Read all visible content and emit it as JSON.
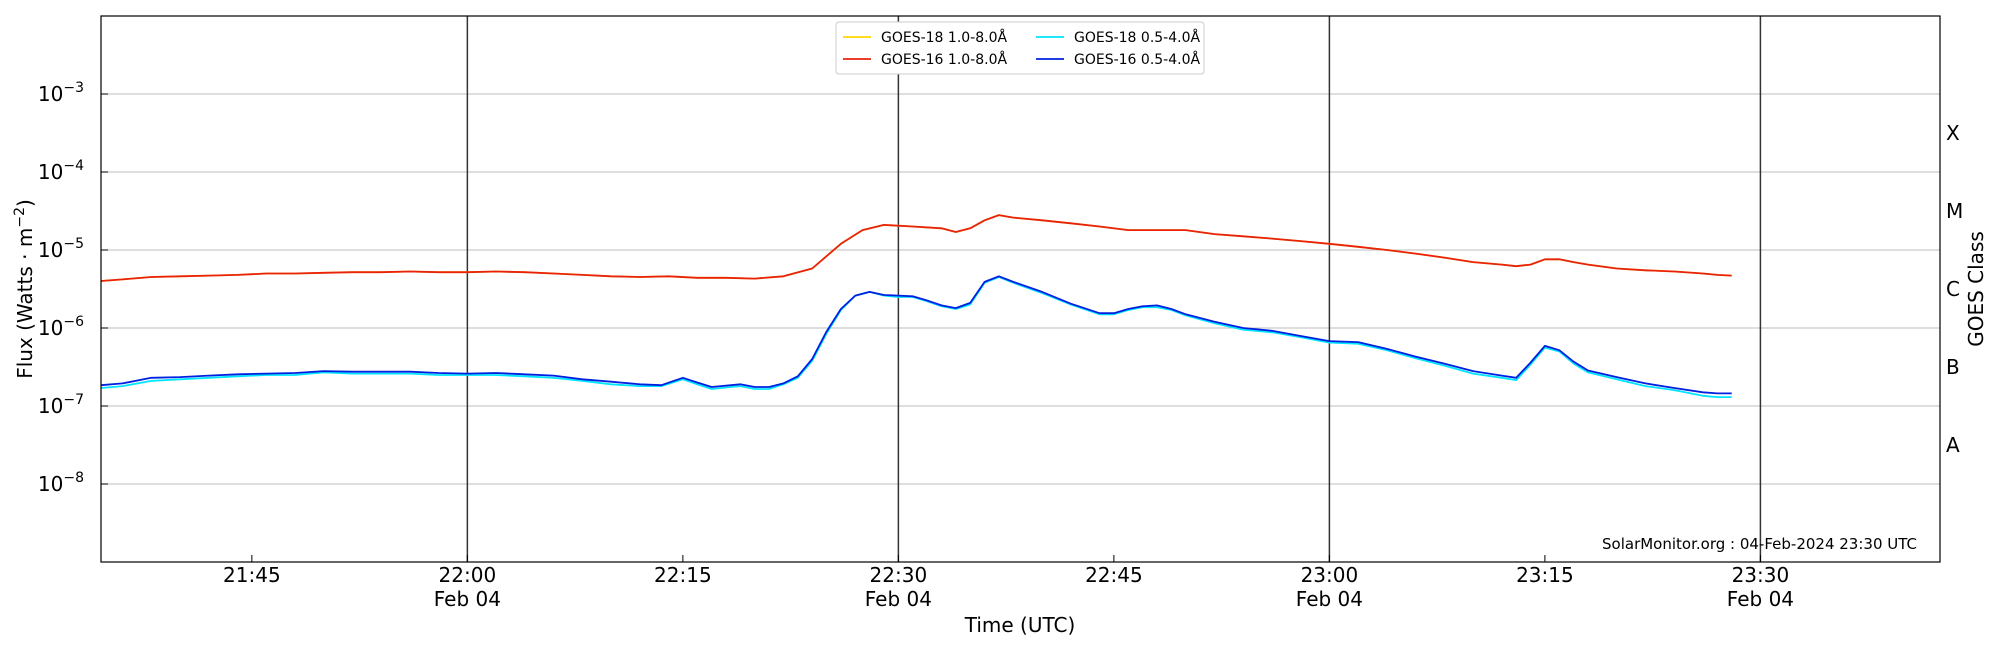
{
  "chart_data": {
    "type": "line",
    "xlabel": "Time (UTC)",
    "ylabel_main": "Flux (Watts · m",
    "ylabel_sup": "−2",
    "ylabel_close": ")",
    "right_axis_label": "GOES Class",
    "credit": "SolarMonitor.org : 04-Feb-2024 23:30 UTC",
    "x_range_minutes": [
      1294.5,
      1422.5
    ],
    "y_log_range": [
      -9,
      -2
    ],
    "grid": "horizontal",
    "legend_position": "top-center",
    "x_ticks": [
      {
        "minute": 1305,
        "time": "21:45",
        "date": ""
      },
      {
        "minute": 1320,
        "time": "22:00",
        "date": "Feb 04"
      },
      {
        "minute": 1335,
        "time": "22:15",
        "date": ""
      },
      {
        "minute": 1350,
        "time": "22:30",
        "date": "Feb 04"
      },
      {
        "minute": 1365,
        "time": "22:45",
        "date": ""
      },
      {
        "minute": 1380,
        "time": "23:00",
        "date": "Feb 04"
      },
      {
        "minute": 1395,
        "time": "23:15",
        "date": ""
      },
      {
        "minute": 1410,
        "time": "23:30",
        "date": "Feb 04"
      }
    ],
    "vertical_lines_minutes": [
      1320,
      1350,
      1380,
      1410
    ],
    "y_ticks": [
      {
        "exp": -8,
        "base": "10",
        "sup": "−8"
      },
      {
        "exp": -7,
        "base": "10",
        "sup": "−7"
      },
      {
        "exp": -6,
        "base": "10",
        "sup": "−6"
      },
      {
        "exp": -5,
        "base": "10",
        "sup": "−5"
      },
      {
        "exp": -4,
        "base": "10",
        "sup": "−4"
      },
      {
        "exp": -3,
        "base": "10",
        "sup": "−3"
      }
    ],
    "goes_classes": [
      {
        "label": "A",
        "exp": -7.5
      },
      {
        "label": "B",
        "exp": -6.5
      },
      {
        "label": "C",
        "exp": -5.5
      },
      {
        "label": "M",
        "exp": -4.5
      },
      {
        "label": "X",
        "exp": -3.5
      }
    ],
    "series": [
      {
        "name": "GOES-18 1.0-8.0Å",
        "color": "#ffd700",
        "x_minutes": [
          1294.5,
          1296,
          1298,
          1300,
          1302,
          1304,
          1306,
          1308,
          1310,
          1312,
          1314,
          1316,
          1318,
          1320,
          1322,
          1324,
          1326,
          1328,
          1330,
          1332,
          1334,
          1336,
          1338,
          1340,
          1342,
          1344,
          1346,
          1347.5,
          1349,
          1351,
          1353,
          1354,
          1355,
          1356,
          1357,
          1358,
          1360,
          1362,
          1364,
          1366,
          1368,
          1370,
          1372,
          1374,
          1376,
          1378,
          1380,
          1382,
          1384,
          1386,
          1388,
          1390,
          1392,
          1393,
          1394,
          1395,
          1396,
          1397,
          1398,
          1400,
          1402,
          1404,
          1406,
          1407,
          1408
        ],
        "values": [
          4e-06,
          4.2e-06,
          4.5e-06,
          4.6e-06,
          4.7e-06,
          4.8e-06,
          5e-06,
          5e-06,
          5.1e-06,
          5.2e-06,
          5.2e-06,
          5.3e-06,
          5.2e-06,
          5.2e-06,
          5.3e-06,
          5.2e-06,
          5e-06,
          4.8e-06,
          4.6e-06,
          4.5e-06,
          4.6e-06,
          4.4e-06,
          4.4e-06,
          4.3e-06,
          4.6e-06,
          5.8e-06,
          1.2e-05,
          1.8e-05,
          2.1e-05,
          2e-05,
          1.9e-05,
          1.7e-05,
          1.9e-05,
          2.4e-05,
          2.8e-05,
          2.6e-05,
          2.4e-05,
          2.2e-05,
          2e-05,
          1.8e-05,
          1.8e-05,
          1.8e-05,
          1.6e-05,
          1.5e-05,
          1.4e-05,
          1.3e-05,
          1.2e-05,
          1.1e-05,
          1e-05,
          9e-06,
          8e-06,
          7e-06,
          6.5e-06,
          6.2e-06,
          6.5e-06,
          7.6e-06,
          7.6e-06,
          7e-06,
          6.5e-06,
          5.8e-06,
          5.5e-06,
          5.3e-06,
          5e-06,
          4.8e-06,
          4.7e-06
        ]
      },
      {
        "name": "GOES-16 1.0-8.0Å",
        "color": "#e8220e",
        "x_minutes": [
          1294.5,
          1296,
          1298,
          1300,
          1302,
          1304,
          1306,
          1308,
          1310,
          1312,
          1314,
          1316,
          1318,
          1320,
          1322,
          1324,
          1326,
          1328,
          1330,
          1332,
          1334,
          1336,
          1338,
          1340,
          1342,
          1344,
          1346,
          1347.5,
          1349,
          1351,
          1353,
          1354,
          1355,
          1356,
          1357,
          1358,
          1360,
          1362,
          1364,
          1366,
          1368,
          1370,
          1372,
          1374,
          1376,
          1378,
          1380,
          1382,
          1384,
          1386,
          1388,
          1390,
          1392,
          1393,
          1394,
          1395,
          1396,
          1397,
          1398,
          1400,
          1402,
          1404,
          1406,
          1407,
          1408
        ],
        "values": [
          4e-06,
          4.2e-06,
          4.5e-06,
          4.6e-06,
          4.7e-06,
          4.8e-06,
          5e-06,
          5e-06,
          5.1e-06,
          5.2e-06,
          5.2e-06,
          5.3e-06,
          5.2e-06,
          5.2e-06,
          5.3e-06,
          5.2e-06,
          5e-06,
          4.8e-06,
          4.6e-06,
          4.5e-06,
          4.6e-06,
          4.4e-06,
          4.4e-06,
          4.3e-06,
          4.6e-06,
          5.8e-06,
          1.2e-05,
          1.8e-05,
          2.1e-05,
          2e-05,
          1.9e-05,
          1.7e-05,
          1.9e-05,
          2.4e-05,
          2.8e-05,
          2.6e-05,
          2.4e-05,
          2.2e-05,
          2e-05,
          1.8e-05,
          1.8e-05,
          1.8e-05,
          1.6e-05,
          1.5e-05,
          1.4e-05,
          1.3e-05,
          1.2e-05,
          1.1e-05,
          1e-05,
          9e-06,
          8e-06,
          7e-06,
          6.5e-06,
          6.2e-06,
          6.5e-06,
          7.6e-06,
          7.6e-06,
          7e-06,
          6.5e-06,
          5.8e-06,
          5.5e-06,
          5.3e-06,
          5e-06,
          4.8e-06,
          4.7e-06
        ]
      },
      {
        "name": "GOES-18 0.5-4.0Å",
        "color": "#00e5ff",
        "x_minutes": [
          1294.5,
          1296,
          1298,
          1300,
          1302,
          1304,
          1306,
          1308,
          1310,
          1312,
          1314,
          1316,
          1318,
          1320,
          1322,
          1324,
          1326,
          1328,
          1330,
          1332,
          1333.5,
          1335,
          1336,
          1337,
          1339,
          1340,
          1341,
          1342,
          1343,
          1344,
          1345,
          1346,
          1347,
          1348,
          1349,
          1350,
          1351,
          1352,
          1353,
          1354,
          1355,
          1356,
          1357,
          1358,
          1360,
          1362,
          1364,
          1365,
          1366,
          1367,
          1368,
          1369,
          1370,
          1372,
          1374,
          1376,
          1378,
          1380,
          1382,
          1384,
          1386,
          1388,
          1390,
          1392,
          1393,
          1394,
          1395,
          1396,
          1397,
          1398,
          1400,
          1402,
          1404,
          1406,
          1407,
          1408
        ],
        "values": [
          1.7e-07,
          1.8e-07,
          2.1e-07,
          2.2e-07,
          2.3e-07,
          2.4e-07,
          2.5e-07,
          2.5e-07,
          2.7e-07,
          2.6e-07,
          2.6e-07,
          2.6e-07,
          2.5e-07,
          2.5e-07,
          2.5e-07,
          2.4e-07,
          2.3e-07,
          2.1e-07,
          1.9e-07,
          1.8e-07,
          1.8e-07,
          2.2e-07,
          1.9e-07,
          1.65e-07,
          1.8e-07,
          1.65e-07,
          1.65e-07,
          1.9e-07,
          2.3e-07,
          3.8e-07,
          8.5e-07,
          1.7e-06,
          2.6e-06,
          2.9e-06,
          2.6e-06,
          2.5e-06,
          2.5e-06,
          2.2e-06,
          1.9e-06,
          1.75e-06,
          2e-06,
          3.8e-06,
          4.5e-06,
          3.8e-06,
          2.8e-06,
          2e-06,
          1.5e-06,
          1.5e-06,
          1.7e-06,
          1.85e-06,
          1.85e-06,
          1.7e-06,
          1.45e-06,
          1.15e-06,
          9.5e-07,
          8.8e-07,
          7.6e-07,
          6.5e-07,
          6.3e-07,
          5.2e-07,
          4.1e-07,
          3.3e-07,
          2.6e-07,
          2.3e-07,
          2.15e-07,
          3.4e-07,
          5.6e-07,
          5e-07,
          3.5e-07,
          2.7e-07,
          2.2e-07,
          1.8e-07,
          1.6e-07,
          1.35e-07,
          1.3e-07,
          1.3e-07
        ]
      },
      {
        "name": "GOES-16 0.5-4.0Å",
        "color": "#0020e0",
        "x_minutes": [
          1294.5,
          1296,
          1298,
          1300,
          1302,
          1304,
          1306,
          1308,
          1310,
          1312,
          1314,
          1316,
          1318,
          1320,
          1322,
          1324,
          1326,
          1328,
          1330,
          1332,
          1333.5,
          1335,
          1336,
          1337,
          1339,
          1340,
          1341,
          1342,
          1343,
          1344,
          1345,
          1346,
          1347,
          1348,
          1349,
          1350,
          1351,
          1352,
          1353,
          1354,
          1355,
          1356,
          1357,
          1358,
          1360,
          1362,
          1364,
          1365,
          1366,
          1367,
          1368,
          1369,
          1370,
          1372,
          1374,
          1376,
          1378,
          1380,
          1382,
          1384,
          1386,
          1388,
          1390,
          1392,
          1393,
          1394,
          1395,
          1396,
          1397,
          1398,
          1400,
          1402,
          1404,
          1406,
          1407,
          1408
        ],
        "values": [
          1.85e-07,
          1.95e-07,
          2.3e-07,
          2.35e-07,
          2.45e-07,
          2.55e-07,
          2.6e-07,
          2.65e-07,
          2.8e-07,
          2.75e-07,
          2.75e-07,
          2.75e-07,
          2.65e-07,
          2.6e-07,
          2.65e-07,
          2.55e-07,
          2.45e-07,
          2.2e-07,
          2.05e-07,
          1.9e-07,
          1.85e-07,
          2.3e-07,
          2e-07,
          1.75e-07,
          1.9e-07,
          1.75e-07,
          1.75e-07,
          1.95e-07,
          2.4e-07,
          4e-07,
          9e-07,
          1.75e-06,
          2.6e-06,
          2.9e-06,
          2.65e-06,
          2.6e-06,
          2.55e-06,
          2.25e-06,
          1.95e-06,
          1.8e-06,
          2.1e-06,
          3.9e-06,
          4.6e-06,
          3.9e-06,
          2.9e-06,
          2.05e-06,
          1.55e-06,
          1.55e-06,
          1.75e-06,
          1.9e-06,
          1.95e-06,
          1.75e-06,
          1.5e-06,
          1.2e-06,
          1e-06,
          9.2e-07,
          7.9e-07,
          6.8e-07,
          6.6e-07,
          5.4e-07,
          4.3e-07,
          3.5e-07,
          2.8e-07,
          2.45e-07,
          2.3e-07,
          3.6e-07,
          5.9e-07,
          5.2e-07,
          3.7e-07,
          2.85e-07,
          2.35e-07,
          1.95e-07,
          1.7e-07,
          1.5e-07,
          1.45e-07,
          1.45e-07
        ]
      }
    ]
  }
}
